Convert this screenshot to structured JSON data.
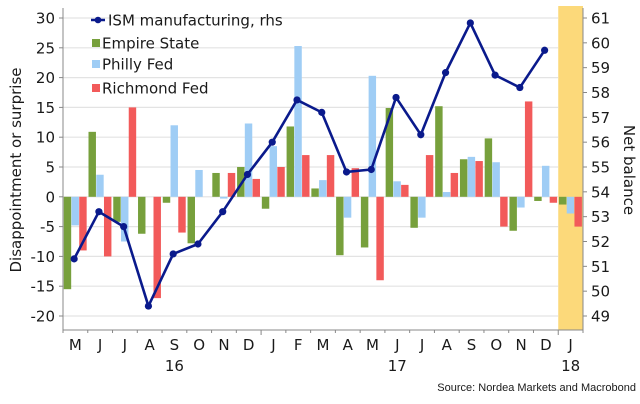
{
  "chart_data": {
    "type": "bar+line",
    "title": "",
    "categories": [
      "M",
      "J",
      "J",
      "A",
      "S",
      "O",
      "N",
      "D",
      "J",
      "F",
      "M",
      "A",
      "M",
      "J",
      "J",
      "A",
      "S",
      "O",
      "N",
      "D",
      "J"
    ],
    "year_labels": [
      {
        "label": "16",
        "category_index": 4
      },
      {
        "label": "17",
        "category_index": 13
      },
      {
        "label": "18",
        "category_index": 20
      }
    ],
    "months": [
      "2016-05",
      "2016-06",
      "2016-07",
      "2016-08",
      "2016-09",
      "2016-10",
      "2016-11",
      "2016-12",
      "2017-01",
      "2017-02",
      "2017-03",
      "2017-04",
      "2017-05",
      "2017-06",
      "2017-07",
      "2017-08",
      "2017-09",
      "2017-10",
      "2017-11",
      "2017-12",
      "2018-01"
    ],
    "series": [
      {
        "name": "Empire State",
        "type": "bar",
        "axis": "left",
        "color": "#77a03c",
        "values": [
          -15.5,
          10.9,
          -4.2,
          -6.2,
          -1.0,
          -7.8,
          4.0,
          5.0,
          -2.0,
          11.8,
          1.4,
          -9.8,
          -8.5,
          14.9,
          -5.2,
          15.2,
          6.3,
          9.8,
          -5.7,
          -0.7,
          -1.3
        ]
      },
      {
        "name": "Philly Fed",
        "type": "bar",
        "axis": "left",
        "color": "#9fcdf5",
        "values": [
          -4.8,
          3.7,
          -7.5,
          0.0,
          12.0,
          4.5,
          -0.3,
          12.3,
          8.5,
          25.3,
          2.8,
          -3.5,
          20.3,
          2.6,
          -3.5,
          0.8,
          6.7,
          5.8,
          -1.8,
          5.2,
          -2.8
        ]
      },
      {
        "name": "Richmond Fed",
        "type": "bar",
        "axis": "left",
        "color": "#f25a5a",
        "values": [
          -9.0,
          -10.0,
          15.0,
          -17.0,
          -6.0,
          0.0,
          4.0,
          3.0,
          5.0,
          7.0,
          7.0,
          4.8,
          -14.0,
          2.0,
          7.0,
          4.0,
          6.0,
          -5.0,
          16.0,
          -1.0,
          -5.0
        ]
      },
      {
        "name": "ISM manufacturing, rhs",
        "type": "line",
        "axis": "right",
        "color": "#0a1a8c",
        "values": [
          51.3,
          53.2,
          52.6,
          49.4,
          51.5,
          51.9,
          53.2,
          54.7,
          56.0,
          57.7,
          57.2,
          54.8,
          54.9,
          57.8,
          56.3,
          58.8,
          60.8,
          58.7,
          58.2,
          59.7,
          null
        ]
      }
    ],
    "ylabel": "Disappointment or surprise",
    "ylabel_right": "Net balance",
    "ylim": [
      -20,
      30
    ],
    "ylim_right": [
      49,
      61
    ],
    "yticks": [
      30,
      25,
      20,
      15,
      10,
      5,
      0,
      -5,
      -10,
      -15,
      -20
    ],
    "yticks_right": [
      61,
      60,
      59,
      58,
      57,
      56,
      55,
      54,
      53,
      52,
      51,
      50,
      49
    ],
    "grid": true,
    "legend": {
      "placement": "top-left",
      "entries": [
        "ISM manufacturing, rhs",
        "Empire State",
        "Philly Fed",
        "Richmond Fed"
      ]
    },
    "highlight": {
      "category_index": 20,
      "color": "#fcd97a",
      "label": "Jan 2018"
    },
    "source": "Source: Nordea Markets and Macrobond"
  }
}
